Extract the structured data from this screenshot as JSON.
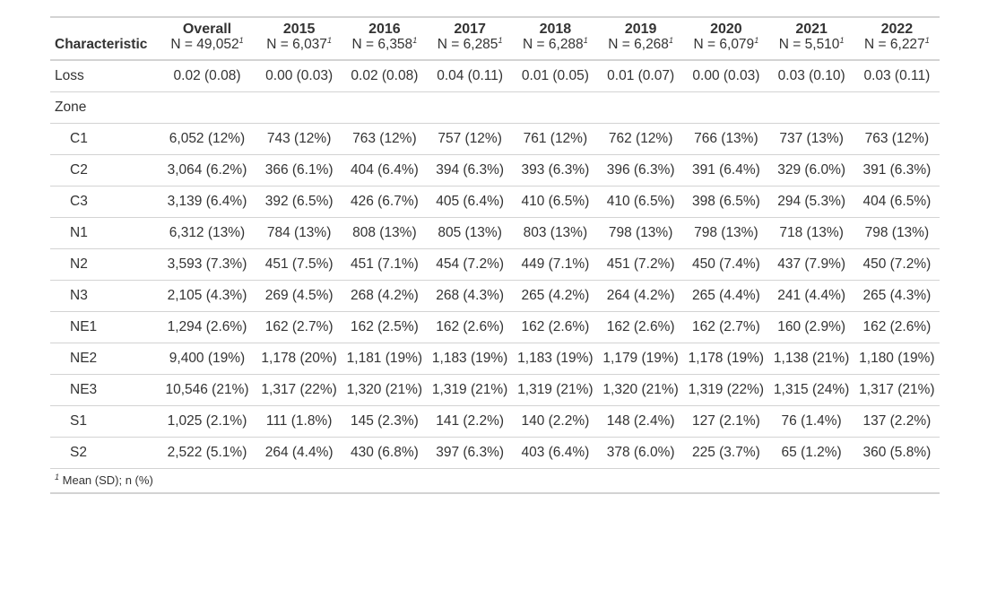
{
  "table": {
    "header": {
      "characteristic": "Characteristic",
      "columns": [
        {
          "title": "Overall",
          "n": "N = 49,052"
        },
        {
          "title": "2015",
          "n": "N = 6,037"
        },
        {
          "title": "2016",
          "n": "N = 6,358"
        },
        {
          "title": "2017",
          "n": "N = 6,285"
        },
        {
          "title": "2018",
          "n": "N = 6,288"
        },
        {
          "title": "2019",
          "n": "N = 6,268"
        },
        {
          "title": "2020",
          "n": "N = 6,079"
        },
        {
          "title": "2021",
          "n": "N = 5,510"
        },
        {
          "title": "2022",
          "n": "N = 6,227"
        }
      ],
      "footnote_marker": "1"
    },
    "rows": [
      {
        "label": "Loss",
        "indent": false,
        "values": [
          "0.02 (0.08)",
          "0.00 (0.03)",
          "0.02 (0.08)",
          "0.04 (0.11)",
          "0.01 (0.05)",
          "0.01 (0.07)",
          "0.00 (0.03)",
          "0.03 (0.10)",
          "0.03 (0.11)"
        ]
      },
      {
        "label": "Zone",
        "indent": false,
        "values": [
          "",
          "",
          "",
          "",
          "",
          "",
          "",
          "",
          ""
        ]
      },
      {
        "label": "C1",
        "indent": true,
        "values": [
          "6,052 (12%)",
          "743 (12%)",
          "763 (12%)",
          "757 (12%)",
          "761 (12%)",
          "762 (12%)",
          "766 (13%)",
          "737 (13%)",
          "763 (12%)"
        ]
      },
      {
        "label": "C2",
        "indent": true,
        "values": [
          "3,064 (6.2%)",
          "366 (6.1%)",
          "404 (6.4%)",
          "394 (6.3%)",
          "393 (6.3%)",
          "396 (6.3%)",
          "391 (6.4%)",
          "329 (6.0%)",
          "391 (6.3%)"
        ]
      },
      {
        "label": "C3",
        "indent": true,
        "values": [
          "3,139 (6.4%)",
          "392 (6.5%)",
          "426 (6.7%)",
          "405 (6.4%)",
          "410 (6.5%)",
          "410 (6.5%)",
          "398 (6.5%)",
          "294 (5.3%)",
          "404 (6.5%)"
        ]
      },
      {
        "label": "N1",
        "indent": true,
        "values": [
          "6,312 (13%)",
          "784 (13%)",
          "808 (13%)",
          "805 (13%)",
          "803 (13%)",
          "798 (13%)",
          "798 (13%)",
          "718 (13%)",
          "798 (13%)"
        ]
      },
      {
        "label": "N2",
        "indent": true,
        "values": [
          "3,593 (7.3%)",
          "451 (7.5%)",
          "451 (7.1%)",
          "454 (7.2%)",
          "449 (7.1%)",
          "451 (7.2%)",
          "450 (7.4%)",
          "437 (7.9%)",
          "450 (7.2%)"
        ]
      },
      {
        "label": "N3",
        "indent": true,
        "values": [
          "2,105 (4.3%)",
          "269 (4.5%)",
          "268 (4.2%)",
          "268 (4.3%)",
          "265 (4.2%)",
          "264 (4.2%)",
          "265 (4.4%)",
          "241 (4.4%)",
          "265 (4.3%)"
        ]
      },
      {
        "label": "NE1",
        "indent": true,
        "values": [
          "1,294 (2.6%)",
          "162 (2.7%)",
          "162 (2.5%)",
          "162 (2.6%)",
          "162 (2.6%)",
          "162 (2.6%)",
          "162 (2.7%)",
          "160 (2.9%)",
          "162 (2.6%)"
        ]
      },
      {
        "label": "NE2",
        "indent": true,
        "values": [
          "9,400 (19%)",
          "1,178 (20%)",
          "1,181 (19%)",
          "1,183 (19%)",
          "1,183 (19%)",
          "1,179 (19%)",
          "1,178 (19%)",
          "1,138 (21%)",
          "1,180 (19%)"
        ]
      },
      {
        "label": "NE3",
        "indent": true,
        "values": [
          "10,546 (21%)",
          "1,317 (22%)",
          "1,320 (21%)",
          "1,319 (21%)",
          "1,319 (21%)",
          "1,320 (21%)",
          "1,319 (22%)",
          "1,315 (24%)",
          "1,317 (21%)"
        ]
      },
      {
        "label": "S1",
        "indent": true,
        "values": [
          "1,025 (2.1%)",
          "111 (1.8%)",
          "145 (2.3%)",
          "141 (2.2%)",
          "140 (2.2%)",
          "148 (2.4%)",
          "127 (2.1%)",
          "76 (1.4%)",
          "137 (2.2%)"
        ]
      },
      {
        "label": "S2",
        "indent": true,
        "values": [
          "2,522 (5.1%)",
          "264 (4.4%)",
          "430 (6.8%)",
          "397 (6.3%)",
          "403 (6.4%)",
          "378 (6.0%)",
          "225 (3.7%)",
          "65 (1.2%)",
          "360 (5.8%)"
        ]
      }
    ],
    "footnote": {
      "marker": "1",
      "text": "Mean (SD); n (%)"
    }
  }
}
